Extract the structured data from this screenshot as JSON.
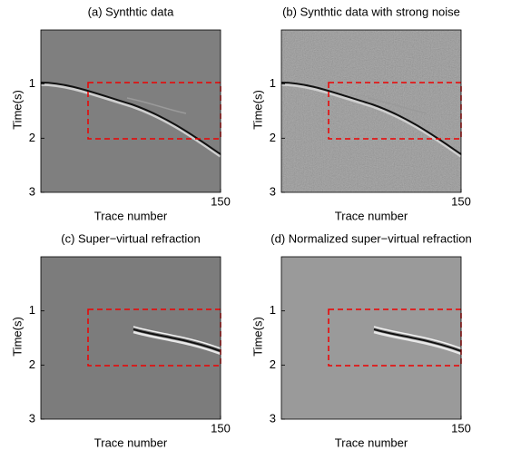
{
  "chart_data": [
    {
      "type": "image",
      "title": "(a) Synthtic data",
      "xlabel": "Trace number",
      "ylabel": "Time(s)",
      "xlim": [
        0,
        150
      ],
      "ylim": [
        0,
        3
      ],
      "xticks": [
        150
      ],
      "yticks": [
        1,
        2,
        3
      ]
    },
    {
      "type": "image",
      "title": "(b) Synthtic data with strong noise",
      "xlabel": "Trace number",
      "ylabel": "Time(s)",
      "xlim": [
        0,
        150
      ],
      "ylim": [
        0,
        3
      ],
      "xticks": [
        150
      ],
      "yticks": [
        1,
        2,
        3
      ]
    },
    {
      "type": "image",
      "title": "(c) Super−virtual refraction",
      "xlabel": "Trace number",
      "ylabel": "Time(s)",
      "xlim": [
        0,
        150
      ],
      "ylim": [
        0,
        3
      ],
      "xticks": [
        150
      ],
      "yticks": [
        1,
        2,
        3
      ]
    },
    {
      "type": "image",
      "title": "(d) Normalized super−virtual refraction",
      "xlabel": "Trace number",
      "ylabel": "Time(s)",
      "xlim": [
        0,
        150
      ],
      "ylim": [
        0,
        3
      ],
      "xticks": [
        150
      ],
      "yticks": [
        1,
        2,
        3
      ]
    }
  ]
}
